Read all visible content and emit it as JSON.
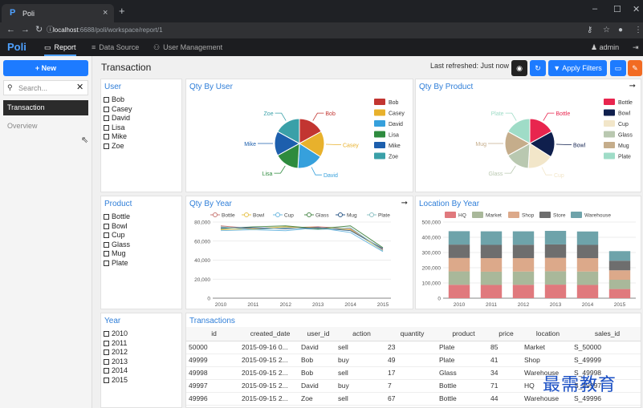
{
  "browser": {
    "tab_title": "Poli",
    "tab_icon": "P",
    "close": "×",
    "new_tab": "+",
    "url_host": "localhost",
    "url_rest": ":6688/poli/workspace/report/1",
    "win_min": "–",
    "win_max": "☐",
    "win_close": "✕"
  },
  "appnav": {
    "logo": "Poli",
    "items": [
      {
        "label": "Report",
        "icon": "monitor-icon",
        "active": true
      },
      {
        "label": "Data Source",
        "icon": "database-icon"
      },
      {
        "label": "User Management",
        "icon": "users-icon"
      }
    ],
    "user": "admin"
  },
  "sidebar": {
    "new_label": "+ New",
    "search_placeholder": "Search...",
    "items": [
      {
        "label": "Transaction",
        "selected": true
      },
      {
        "label": "Overview",
        "selected": false
      }
    ]
  },
  "main": {
    "title": "Transaction",
    "last_refreshed": "Last refreshed: Just now",
    "apply_filters": "Apply Filters"
  },
  "filters": {
    "user": {
      "title": "User",
      "options": [
        "Bob",
        "Casey",
        "David",
        "Lisa",
        "Mike",
        "Zoe"
      ]
    },
    "product": {
      "title": "Product",
      "options": [
        "Bottle",
        "Bowl",
        "Cup",
        "Glass",
        "Mug",
        "Plate"
      ]
    },
    "year": {
      "title": "Year",
      "options": [
        "2010",
        "2011",
        "2012",
        "2013",
        "2014",
        "2015"
      ]
    }
  },
  "chart_data": [
    {
      "type": "pie",
      "title": "Qty By User",
      "categories": [
        "Bob",
        "Casey",
        "David",
        "Lisa",
        "Mike",
        "Zoe"
      ],
      "values": [
        17,
        17,
        17,
        16,
        16,
        17
      ],
      "colors": [
        "#c23531",
        "#e8b12c",
        "#36a0dc",
        "#2e8b3e",
        "#1d5fad",
        "#3aa0a8"
      ]
    },
    {
      "type": "pie",
      "title": "Qty By Product",
      "categories": [
        "Bottle",
        "Bowl",
        "Cup",
        "Glass",
        "Mug",
        "Plate"
      ],
      "values": [
        17,
        17,
        17,
        16,
        16,
        17
      ],
      "colors": [
        "#e8254e",
        "#0f1f4d",
        "#f2e6c9",
        "#b9c8b0",
        "#c5ad8b",
        "#9fdcc7"
      ]
    },
    {
      "type": "line",
      "title": "Qty By Year",
      "x": [
        "2010",
        "2011",
        "2012",
        "2013",
        "2014",
        "2015"
      ],
      "ylim": [
        0,
        80000
      ],
      "yticks": [
        "0",
        "20,000",
        "40,000",
        "60,000",
        "80,000"
      ],
      "series": [
        {
          "name": "Bottle",
          "color": "#c97a75",
          "values": [
            76000,
            73000,
            74000,
            75000,
            73000,
            51000
          ]
        },
        {
          "name": "Bowl",
          "color": "#e6c34d",
          "values": [
            72000,
            73000,
            75000,
            74000,
            72000,
            50000
          ]
        },
        {
          "name": "Cup",
          "color": "#6fb8e0",
          "values": [
            71000,
            72000,
            71000,
            74000,
            69000,
            49000
          ]
        },
        {
          "name": "Glass",
          "color": "#4d8a4d",
          "values": [
            73000,
            75000,
            76000,
            73000,
            76000,
            53000
          ]
        },
        {
          "name": "Mug",
          "color": "#2e5a88",
          "values": [
            74000,
            74000,
            73000,
            74000,
            71000,
            52000
          ]
        },
        {
          "name": "Plate",
          "color": "#8fc3c6",
          "values": [
            75000,
            72000,
            74000,
            72000,
            74000,
            50000
          ]
        }
      ]
    },
    {
      "type": "bar",
      "title": "Location By Year",
      "categories": [
        "2010",
        "2011",
        "2012",
        "2013",
        "2014",
        "2015"
      ],
      "ylim": [
        0,
        500000
      ],
      "yticks": [
        "0",
        "100,000",
        "200,000",
        "300,000",
        "400,000",
        "500,000"
      ],
      "stacked": true,
      "series": [
        {
          "name": "HQ",
          "color": "#e0797d",
          "values": [
            88000,
            87000,
            88000,
            89000,
            87000,
            60000
          ]
        },
        {
          "name": "Market",
          "color": "#a9b89a",
          "values": [
            88000,
            87000,
            87000,
            88000,
            88000,
            61000
          ]
        },
        {
          "name": "Shop",
          "color": "#dca98a",
          "values": [
            88000,
            89000,
            88000,
            88000,
            88000,
            62000
          ]
        },
        {
          "name": "Store",
          "color": "#6e6e6e",
          "values": [
            88000,
            87000,
            88000,
            88000,
            87000,
            63000
          ]
        },
        {
          "name": "Warehouse",
          "color": "#6ea3aa",
          "values": [
            88000,
            89000,
            88000,
            89000,
            88000,
            63000
          ]
        }
      ]
    }
  ],
  "transactions": {
    "title": "Transactions",
    "columns": [
      "id",
      "created_date",
      "user_id",
      "action",
      "quantity",
      "product",
      "price",
      "location",
      "sales_id"
    ],
    "rows": [
      [
        "50000",
        "2015-09-16 0...",
        "David",
        "sell",
        "23",
        "Plate",
        "85",
        "Market",
        "S_50000"
      ],
      [
        "49999",
        "2015-09-15 2...",
        "Bob",
        "buy",
        "49",
        "Plate",
        "41",
        "Shop",
        "S_49999"
      ],
      [
        "49998",
        "2015-09-15 2...",
        "Bob",
        "sell",
        "17",
        "Glass",
        "34",
        "Warehouse",
        "S_49998"
      ],
      [
        "49997",
        "2015-09-15 2...",
        "David",
        "buy",
        "7",
        "Bottle",
        "71",
        "HQ",
        "S_49997"
      ],
      [
        "49996",
        "2015-09-15 2...",
        "Zoe",
        "sell",
        "67",
        "Bottle",
        "44",
        "Warehouse",
        "S_49996"
      ]
    ]
  },
  "watermark": "最需教育"
}
